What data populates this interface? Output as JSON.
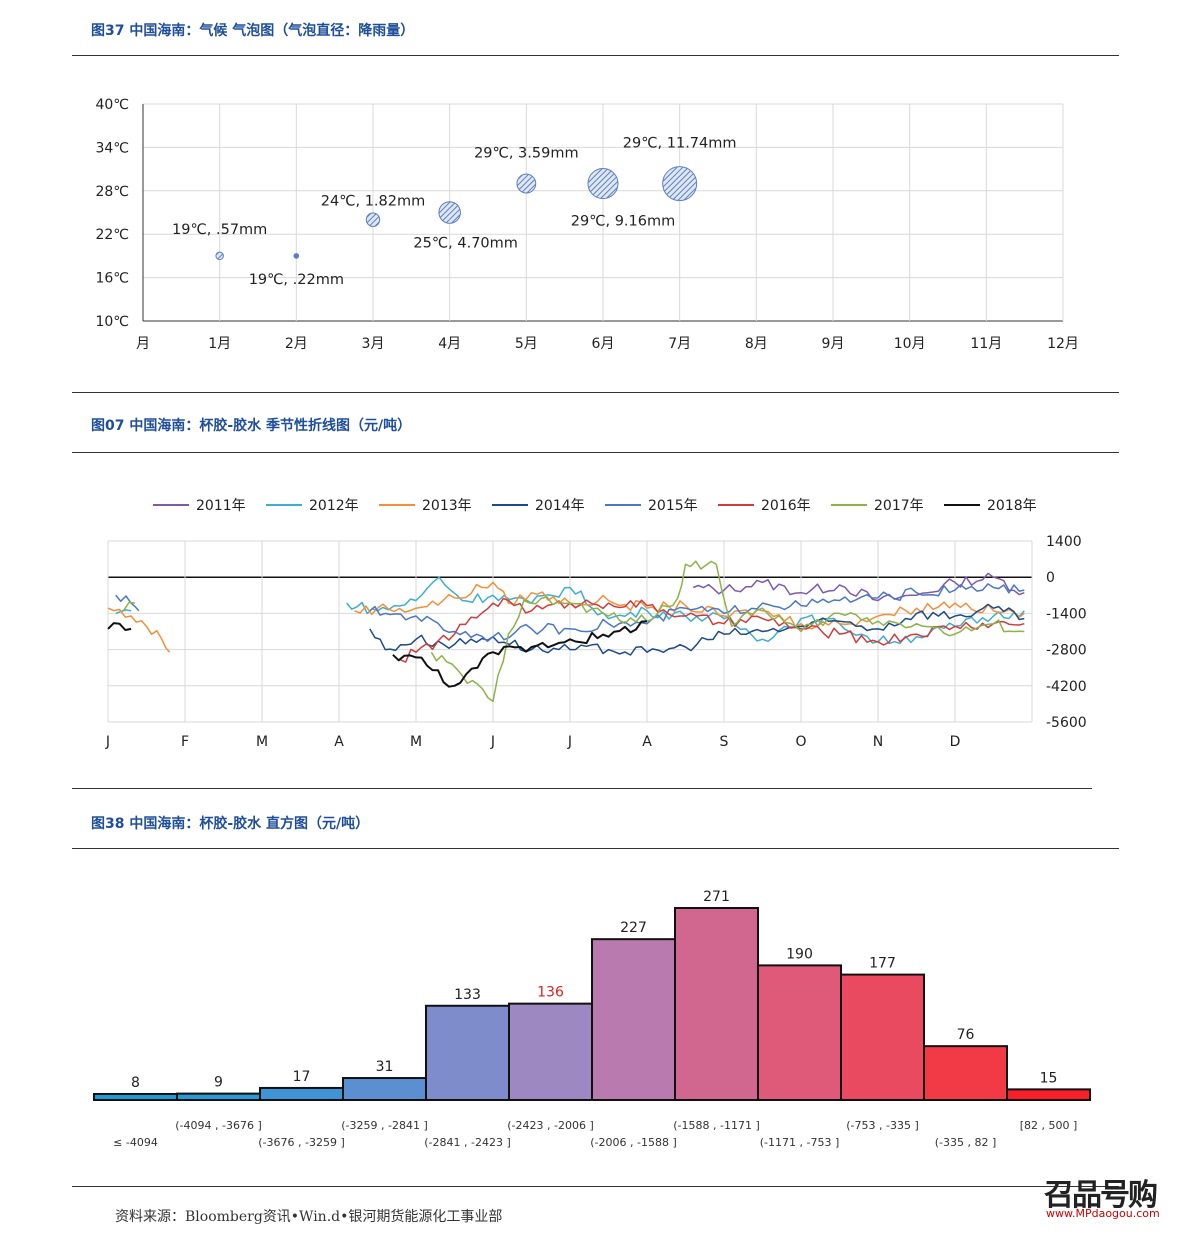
{
  "fig37": {
    "title": "图37  中国海南：气候  气泡图（气泡直径：降雨量）",
    "chart_data": {
      "type": "bubble",
      "yticks": [
        "40℃",
        "34℃",
        "28℃",
        "22℃",
        "16℃",
        "10℃"
      ],
      "ylim": [
        10,
        40
      ],
      "xticks": [
        "月",
        "1月",
        "2月",
        "3月",
        "4月",
        "5月",
        "6月",
        "7月",
        "8月",
        "9月",
        "10月",
        "11月",
        "12月"
      ],
      "points": [
        {
          "x": 1,
          "y": 19,
          "size": 0.57,
          "label": "19℃, .57mm"
        },
        {
          "x": 2,
          "y": 19,
          "size": 0.22,
          "label": "19℃, .22mm"
        },
        {
          "x": 3,
          "y": 24,
          "size": 1.82,
          "label": "24℃, 1.82mm"
        },
        {
          "x": 4,
          "y": 25,
          "size": 4.7,
          "label": "25℃, 4.70mm"
        },
        {
          "x": 5,
          "y": 29,
          "size": 3.59,
          "label": "29℃, 3.59mm"
        },
        {
          "x": 6,
          "y": 29,
          "size": 9.16,
          "label": "29℃, 9.16mm"
        },
        {
          "x": 7,
          "y": 29,
          "size": 11.74,
          "label": "29℃, 11.74mm"
        }
      ],
      "bubble_color": "#5b7fbf"
    }
  },
  "fig07": {
    "title": "图07  中国海南：杯胶-胶水  季节性折线图（元/吨）",
    "chart_data": {
      "type": "line",
      "ylim": [
        -5600,
        1400
      ],
      "yticks": [
        "1400",
        "0",
        "-1400",
        "-2800",
        "-4200",
        "-5600"
      ],
      "xticks": [
        "J",
        "F",
        "M",
        "A",
        "M",
        "J",
        "J",
        "A",
        "S",
        "O",
        "N",
        "D"
      ],
      "series": [
        {
          "name": "2011年",
          "color": "#7e5aa8",
          "points": [
            [
              7.6,
              -400
            ],
            [
              8,
              -500
            ],
            [
              8.5,
              -200
            ],
            [
              9,
              -600
            ],
            [
              9.5,
              -300
            ],
            [
              10,
              -900
            ],
            [
              10.5,
              -700
            ],
            [
              11,
              -200
            ],
            [
              11.5,
              0
            ],
            [
              11.9,
              -600
            ]
          ]
        },
        {
          "name": "2012年",
          "color": "#3daed0",
          "points": [
            [
              0.1,
              -1400
            ],
            [
              0.3,
              -1300
            ],
            [
              3.1,
              -1000
            ],
            [
              3.5,
              -1300
            ],
            [
              4,
              -900
            ],
            [
              4.3,
              0
            ],
            [
              4.6,
              -900
            ],
            [
              5,
              -700
            ],
            [
              5.5,
              -1000
            ],
            [
              6,
              -400
            ],
            [
              6.5,
              -1600
            ],
            [
              7,
              -1300
            ],
            [
              7.5,
              -1500
            ],
            [
              8,
              -1600
            ],
            [
              8.5,
              -2400
            ],
            [
              9,
              -1600
            ],
            [
              9.5,
              -1800
            ],
            [
              10,
              -2500
            ],
            [
              10.5,
              -2300
            ],
            [
              11,
              -1900
            ],
            [
              11.5,
              -1500
            ],
            [
              11.9,
              -1300
            ]
          ]
        },
        {
          "name": "2013年",
          "color": "#f0913a",
          "points": [
            [
              0.0,
              -1200
            ],
            [
              0.3,
              -1500
            ],
            [
              0.5,
              -1900
            ],
            [
              0.7,
              -2400
            ],
            [
              0.8,
              -2900
            ],
            [
              3.2,
              -1300
            ],
            [
              3.5,
              -1200
            ],
            [
              4,
              -1200
            ],
            [
              4.5,
              -800
            ],
            [
              5,
              -200
            ],
            [
              5.2,
              -1000
            ],
            [
              5.5,
              -600
            ],
            [
              6,
              -1000
            ],
            [
              6.5,
              -900
            ],
            [
              7,
              -1200
            ],
            [
              7.5,
              -1100
            ],
            [
              8,
              -1500
            ],
            [
              8.5,
              -1300
            ],
            [
              9,
              -1800
            ],
            [
              9.5,
              -1800
            ],
            [
              10,
              -1500
            ],
            [
              10.5,
              -1200
            ],
            [
              11,
              -1000
            ],
            [
              11.5,
              -1300
            ],
            [
              11.9,
              -1400
            ]
          ]
        },
        {
          "name": "2014年",
          "color": "#1d4a8c",
          "points": [
            [
              3.4,
              -2000
            ],
            [
              3.6,
              -2800
            ],
            [
              4,
              -2400
            ],
            [
              4.5,
              -2600
            ],
            [
              5,
              -2300
            ],
            [
              5.5,
              -2800
            ],
            [
              6,
              -2800
            ],
            [
              6.5,
              -2800
            ],
            [
              7,
              -2900
            ],
            [
              7.5,
              -2700
            ],
            [
              8,
              -2200
            ],
            [
              8.5,
              -2100
            ],
            [
              9,
              -1900
            ],
            [
              9.5,
              -1700
            ],
            [
              10,
              -2000
            ],
            [
              10.5,
              -1400
            ],
            [
              11,
              -1500
            ],
            [
              11.5,
              -1200
            ],
            [
              11.9,
              -1600
            ]
          ]
        },
        {
          "name": "2015年",
          "color": "#4a78c4",
          "points": [
            [
              0.1,
              -700
            ],
            [
              0.3,
              -1000
            ],
            [
              0.4,
              -1300
            ],
            [
              3.4,
              -1300
            ],
            [
              3.6,
              -1400
            ],
            [
              4,
              -1500
            ],
            [
              4.5,
              -2100
            ],
            [
              5,
              -2300
            ],
            [
              5.5,
              -2000
            ],
            [
              6,
              -2000
            ],
            [
              6.5,
              -1800
            ],
            [
              7,
              -1800
            ],
            [
              7.5,
              -1200
            ],
            [
              8,
              -1400
            ],
            [
              8.5,
              -1000
            ],
            [
              9,
              -1100
            ],
            [
              9.5,
              -900
            ],
            [
              10,
              -800
            ],
            [
              10.5,
              -600
            ],
            [
              11,
              -500
            ],
            [
              11.5,
              -400
            ],
            [
              11.9,
              -500
            ]
          ]
        },
        {
          "name": "2016年",
          "color": "#d03c3c",
          "points": [
            [
              3.8,
              -3200
            ],
            [
              4,
              -2900
            ],
            [
              4.5,
              -2200
            ],
            [
              5,
              -1000
            ],
            [
              5.2,
              -900
            ],
            [
              5.5,
              -1300
            ],
            [
              6,
              -1000
            ],
            [
              6.5,
              -1000
            ],
            [
              7,
              -1100
            ],
            [
              7.5,
              -1500
            ],
            [
              8,
              -1800
            ],
            [
              8.5,
              -1600
            ],
            [
              9,
              -2000
            ],
            [
              9.5,
              -2200
            ],
            [
              10,
              -2500
            ],
            [
              10.5,
              -2200
            ],
            [
              11,
              -1900
            ],
            [
              11.5,
              -1800
            ],
            [
              11.9,
              -1800
            ]
          ]
        },
        {
          "name": "2017年",
          "color": "#8db24a",
          "points": [
            [
              0.2,
              -1300
            ],
            [
              0.35,
              -1000
            ],
            [
              4.2,
              -2900
            ],
            [
              4.6,
              -3800
            ],
            [
              5,
              -4800
            ],
            [
              5.2,
              -2200
            ],
            [
              5.4,
              -900
            ],
            [
              6,
              -1000
            ],
            [
              6.5,
              -1500
            ],
            [
              7,
              -1700
            ],
            [
              7.4,
              -800
            ],
            [
              7.5,
              500
            ],
            [
              7.9,
              500
            ],
            [
              8.1,
              -1900
            ],
            [
              8.5,
              -1200
            ],
            [
              9,
              -2100
            ],
            [
              9.5,
              -1400
            ],
            [
              10,
              -1700
            ],
            [
              10.5,
              -1800
            ],
            [
              11,
              -2200
            ],
            [
              11.5,
              -1800
            ],
            [
              11.9,
              -2100
            ]
          ]
        },
        {
          "name": "2018年",
          "color": "#111111",
          "points": [
            [
              0.0,
              -2000
            ],
            [
              0.15,
              -1800
            ],
            [
              0.3,
              -2000
            ],
            [
              3.7,
              -3000
            ],
            [
              4,
              -3100
            ],
            [
              4.5,
              -4200
            ],
            [
              4.8,
              -3500
            ],
            [
              5,
              -2900
            ],
            [
              5.5,
              -2700
            ],
            [
              6,
              -2400
            ],
            [
              6.5,
              -2300
            ],
            [
              7,
              -1700
            ]
          ]
        }
      ]
    }
  },
  "fig38": {
    "title": "图38  中国海南：杯胶-胶水  直方图（元/吨）",
    "chart_data": {
      "type": "bar",
      "categories": [
        "≤ -4094",
        "(-4094 , -3676 ]",
        "(-3676 , -3259 ]",
        "(-3259 , -2841 ]",
        "(-2841 , -2423 ]",
        "(-2423 , -2006 ]",
        "(-2006 , -1588 ]",
        "(-1588 , -1171 ]",
        "(-1171 , -753 ]",
        "(-753 , -335 ]",
        "(-335 , 82 ]",
        "[82 , 500 ]"
      ],
      "values": [
        8,
        9,
        17,
        31,
        133,
        136,
        227,
        271,
        190,
        177,
        76,
        15
      ],
      "colors": [
        "#1e9ad6",
        "#2a98d8",
        "#3f94d6",
        "#5c8ed2",
        "#7e8ccc",
        "#9e88c2",
        "#b97ab0",
        "#d1668e",
        "#de5a78",
        "#ea4a60",
        "#f23a46",
        "#fa1e28"
      ],
      "highlight_index": 5,
      "highlight_color": "#e02020",
      "label_color": "#222222"
    }
  },
  "footer": {
    "source": "资料来源：Bloomberg资讯•Win.d•银河期货能源化工事业部"
  },
  "watermark": {
    "brand": "召品号购",
    "url": "www.MPdaogou.com"
  }
}
